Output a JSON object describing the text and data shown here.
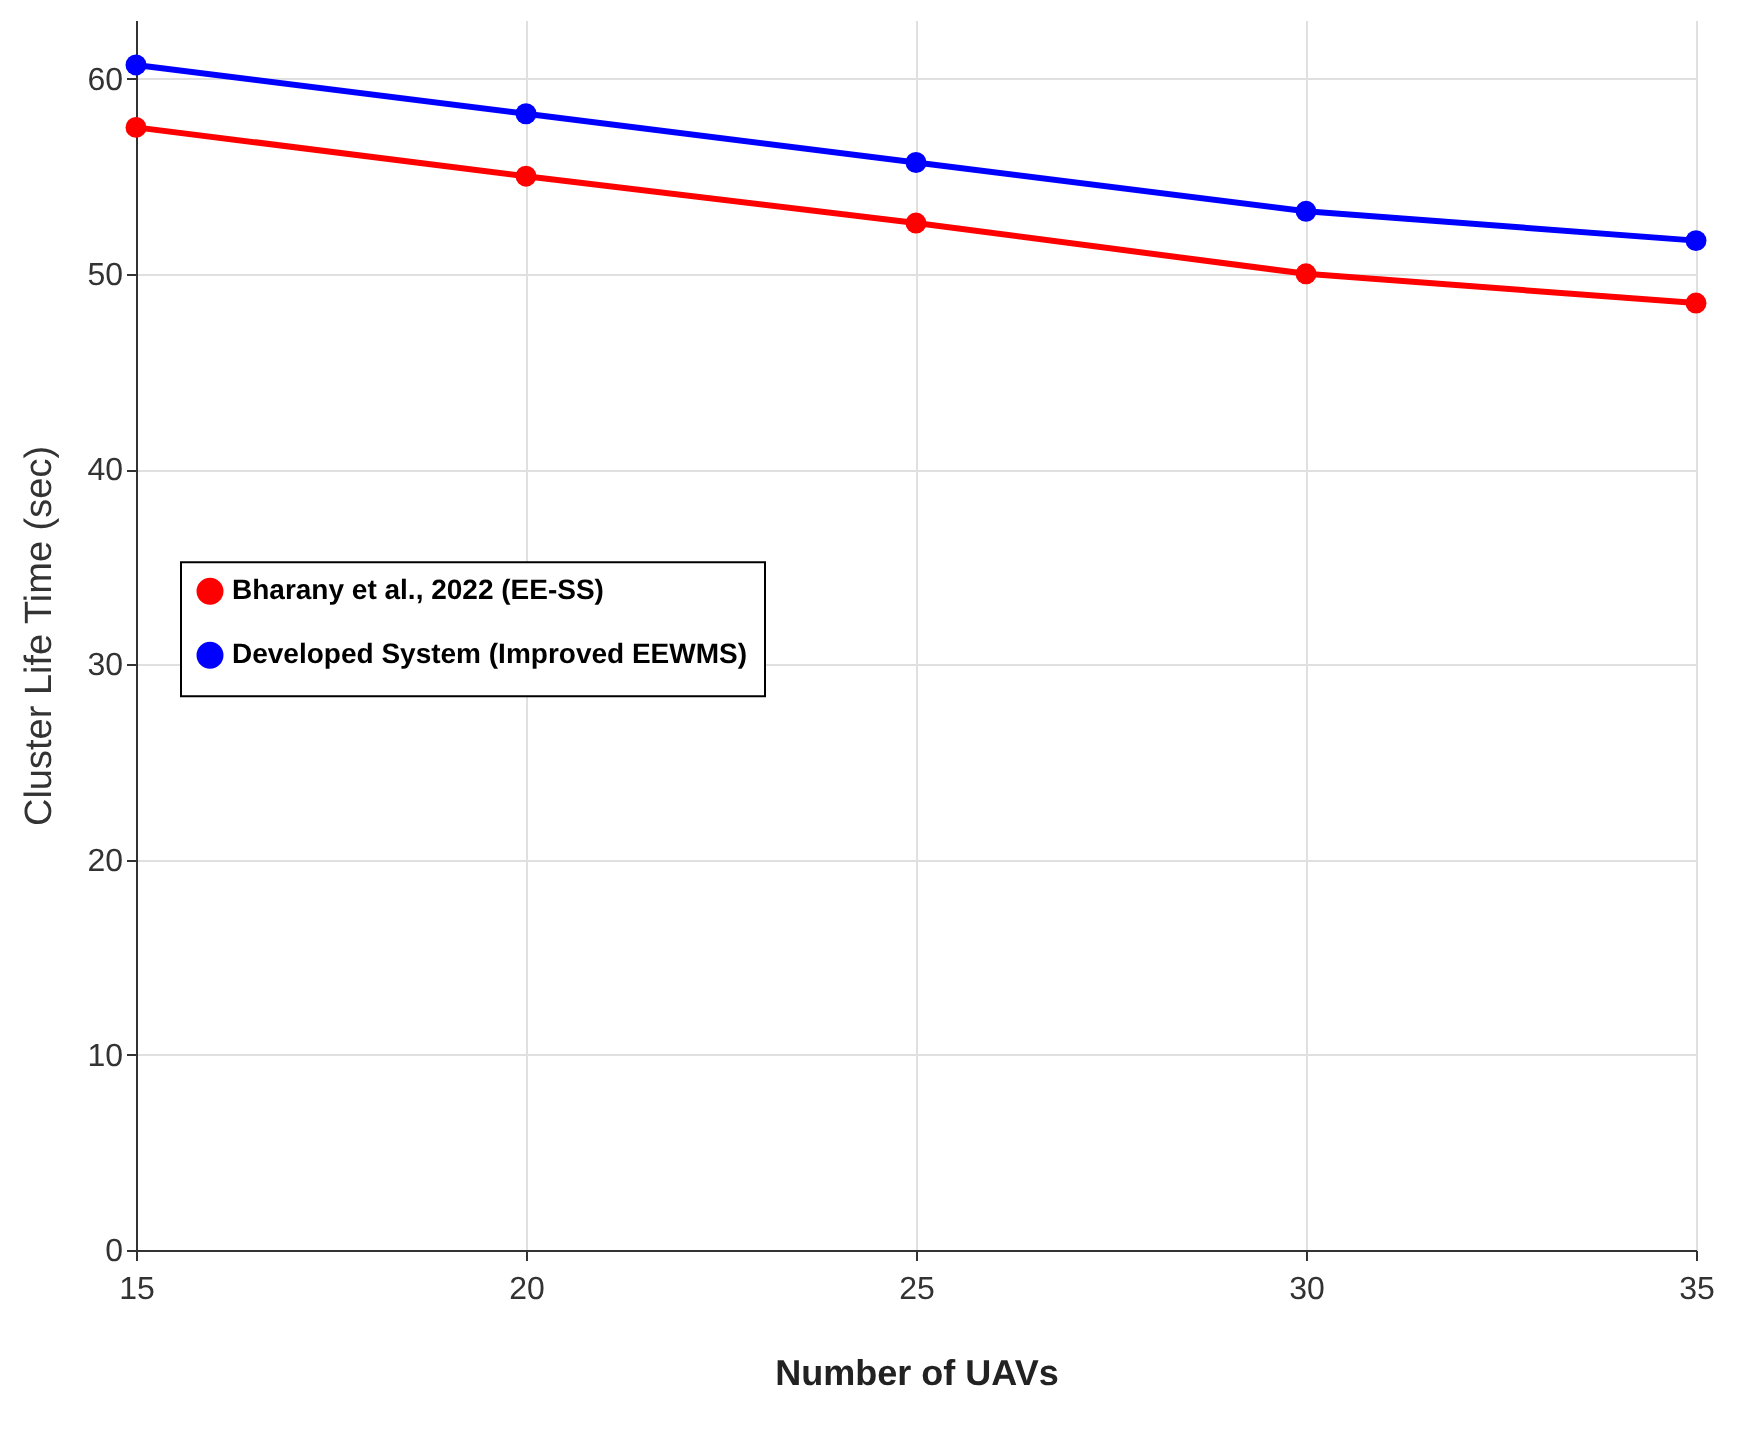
{
  "chart_data": {
    "type": "line",
    "xlabel": "Number of UAVs",
    "ylabel": "Cluster Life Time (sec)",
    "x": [
      15,
      20,
      25,
      30,
      35
    ],
    "series": [
      {
        "name": "Bharany et al., 2022 (EE-SS)",
        "color": "#ff0000",
        "values": [
          57.5,
          55.0,
          52.6,
          50.0,
          48.5
        ]
      },
      {
        "name": "Developed System (Improved EEWMS)",
        "color": "#0000ff",
        "values": [
          60.7,
          58.2,
          55.7,
          53.2,
          51.7
        ]
      }
    ],
    "xlim": [
      15,
      35
    ],
    "xticks": [
      15,
      20,
      25,
      30,
      35
    ],
    "ylim": [
      0,
      63
    ],
    "yticks": [
      0,
      10,
      20,
      30,
      40,
      50,
      60
    ],
    "grid": true,
    "legend": "left",
    "marker": "circle",
    "line_style": "solid"
  }
}
